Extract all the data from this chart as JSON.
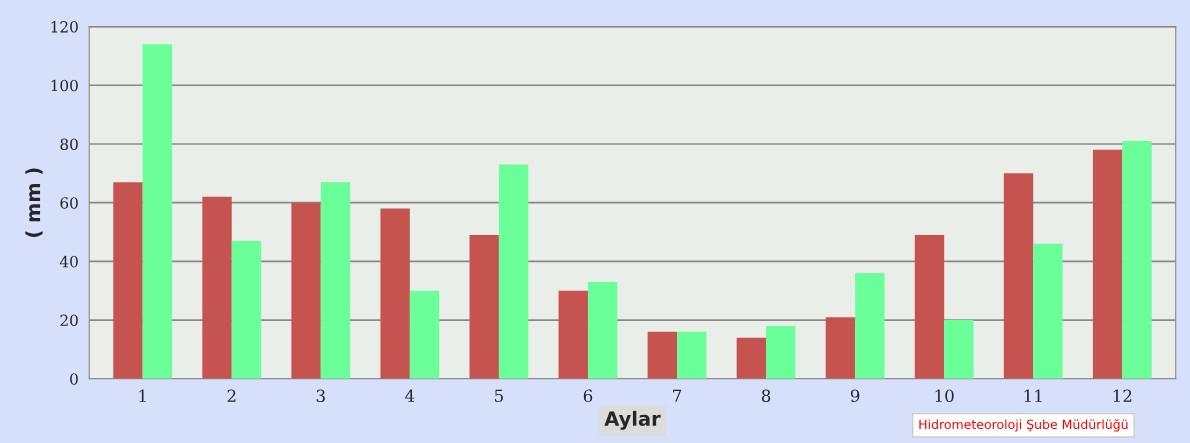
{
  "chart_data": {
    "type": "bar",
    "xlabel": "Aylar",
    "ylabel": "( mm )",
    "categories": [
      "1",
      "2",
      "3",
      "4",
      "5",
      "6",
      "7",
      "8",
      "9",
      "10",
      "11",
      "12"
    ],
    "series": [
      {
        "color": "#c5534f",
        "values": [
          67,
          62,
          60,
          58,
          49,
          30,
          16,
          14,
          21,
          49,
          70,
          78
        ]
      },
      {
        "color": "#6aff99",
        "values": [
          114,
          47,
          67,
          30,
          73,
          33,
          16,
          18,
          36,
          20,
          46,
          81
        ]
      }
    ],
    "ylim": [
      0,
      120
    ],
    "yticks": [
      0,
      20,
      40,
      60,
      80,
      100,
      120
    ],
    "grid": "y",
    "legend": false,
    "annotations": [
      "Hidrometeoroloji Şube Müdürlüğü"
    ]
  }
}
